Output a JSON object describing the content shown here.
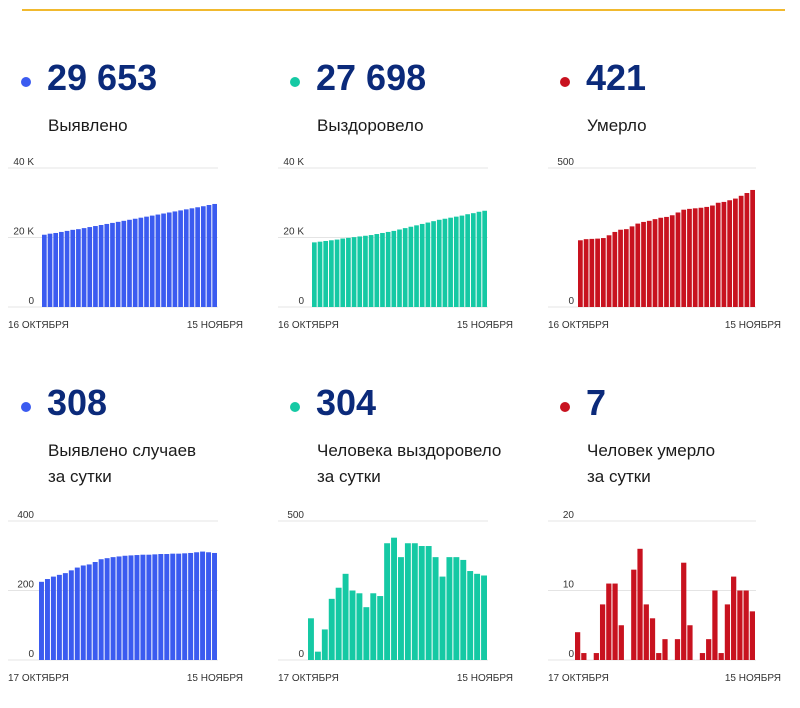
{
  "colors": {
    "blue": "#3b5bf0",
    "green": "#15c9a4",
    "red": "#c8121f",
    "accent": "#f1b92e",
    "number": "#0b2a7a"
  },
  "metrics": [
    {
      "value": "29 653",
      "label_lines": [
        "Выявлено"
      ],
      "color": "#3b5bf0"
    },
    {
      "value": "27 698",
      "label_lines": [
        "Выздоровело"
      ],
      "color": "#15c9a4"
    },
    {
      "value": "421",
      "label_lines": [
        "Умерло"
      ],
      "color": "#c8121f"
    },
    {
      "value": "308",
      "label_lines": [
        "Выявлено случаев",
        "за сутки"
      ],
      "color": "#3b5bf0"
    },
    {
      "value": "304",
      "label_lines": [
        "Человека выздоровело",
        "за сутки"
      ],
      "color": "#15c9a4"
    },
    {
      "value": "7",
      "label_lines": [
        "Человек умерло",
        "за сутки"
      ],
      "color": "#c8121f"
    }
  ],
  "chart_data": [
    {
      "type": "bar",
      "ylim": [
        0,
        40000
      ],
      "yticks": [
        0,
        20000,
        40000
      ],
      "ytick_labels": [
        "0",
        "20 K",
        "40 K"
      ],
      "x_start_label": "16 ОКТЯБРЯ",
      "x_end_label": "15 НОЯБРЯ",
      "color": "#3b5bf0",
      "values": [
        20800,
        21100,
        21300,
        21600,
        21900,
        22200,
        22400,
        22700,
        23000,
        23300,
        23600,
        23900,
        24200,
        24500,
        24800,
        25100,
        25400,
        25700,
        26000,
        26300,
        26600,
        26900,
        27200,
        27500,
        27800,
        28100,
        28400,
        28700,
        29000,
        29350,
        29653
      ]
    },
    {
      "type": "bar",
      "ylim": [
        0,
        40000
      ],
      "yticks": [
        0,
        20000,
        40000
      ],
      "ytick_labels": [
        "0",
        "20 K",
        "40 K"
      ],
      "x_start_label": "16 ОКТЯБРЯ",
      "x_end_label": "15 НОЯБРЯ",
      "color": "#15c9a4",
      "values": [
        18600,
        18800,
        19000,
        19200,
        19400,
        19700,
        19900,
        20100,
        20300,
        20500,
        20700,
        21000,
        21300,
        21600,
        21900,
        22300,
        22700,
        23100,
        23500,
        23900,
        24300,
        24700,
        25100,
        25400,
        25700,
        26000,
        26300,
        26700,
        27000,
        27400,
        27698
      ]
    },
    {
      "type": "bar",
      "ylim": [
        0,
        500
      ],
      "yticks": [
        0,
        500
      ],
      "ytick_labels": [
        "0",
        "500"
      ],
      "x_start_label": "16 ОКТЯБРЯ",
      "x_end_label": "15 НОЯБРЯ",
      "color": "#c8121f",
      "values": [
        240,
        244,
        245,
        246,
        248,
        258,
        270,
        278,
        280,
        290,
        300,
        306,
        310,
        316,
        321,
        324,
        330,
        340,
        350,
        353,
        355,
        357,
        360,
        365,
        375,
        378,
        384,
        390,
        400,
        410,
        421
      ]
    },
    {
      "type": "bar",
      "ylim": [
        0,
        400
      ],
      "yticks": [
        0,
        200,
        400
      ],
      "ytick_labels": [
        "0",
        "200",
        "400"
      ],
      "x_start_label": "17 ОКТЯБРЯ",
      "x_end_label": "15 НОЯБРЯ",
      "color": "#3b5bf0",
      "values": [
        225,
        233,
        240,
        245,
        250,
        258,
        266,
        272,
        275,
        282,
        290,
        293,
        296,
        298,
        300,
        301,
        302,
        303,
        303,
        304,
        305,
        305,
        306,
        306,
        307,
        308,
        310,
        312,
        310,
        308
      ]
    },
    {
      "type": "bar",
      "ylim": [
        0,
        500
      ],
      "yticks": [
        0,
        500
      ],
      "ytick_labels": [
        "0",
        "500"
      ],
      "x_start_label": "17 ОКТЯБРЯ",
      "x_end_label": "15 НОЯБРЯ",
      "color": "#15c9a4",
      "values": [
        150,
        30,
        110,
        220,
        260,
        310,
        250,
        240,
        190,
        240,
        230,
        420,
        440,
        370,
        420,
        420,
        410,
        410,
        370,
        300,
        370,
        370,
        360,
        320,
        310,
        304
      ]
    },
    {
      "type": "bar",
      "ylim": [
        0,
        20
      ],
      "yticks": [
        0,
        10,
        20
      ],
      "ytick_labels": [
        "0",
        "10",
        "20"
      ],
      "x_start_label": "17 ОКТЯБРЯ",
      "x_end_label": "15 НОЯБРЯ",
      "color": "#c8121f",
      "values": [
        4,
        1,
        0,
        1,
        8,
        11,
        11,
        5,
        0,
        13,
        16,
        8,
        6,
        1,
        3,
        0,
        3,
        14,
        5,
        0,
        1,
        3,
        10,
        1,
        8,
        12,
        10,
        10,
        7
      ]
    }
  ]
}
